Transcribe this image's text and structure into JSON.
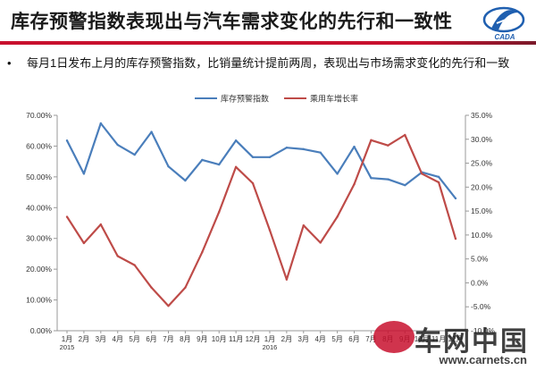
{
  "header": {
    "title": "库存预警指数表现出与汽车需求变化的先行和一致性"
  },
  "bullet": {
    "marker": "•",
    "text": "每月1日发布上月的库存预警指数，比销量统计提前两周，表现出与市场需求变化的先行和一致"
  },
  "logo": {
    "icon": "company-logo-icon",
    "text": "CADA"
  },
  "watermark": {
    "cn": "车网中国",
    "url": "www.carnets.cn"
  },
  "colors": {
    "accent": "#c8102e",
    "series1": "#4a7ebb",
    "series2": "#be4b48"
  },
  "chart_data": {
    "type": "line",
    "title": "",
    "legend_position": "top-center",
    "grid": false,
    "categories": [
      "1月\n2015",
      "2月",
      "3月",
      "4月",
      "5月",
      "6月",
      "7月",
      "8月",
      "9月",
      "10月",
      "11月",
      "12月",
      "1月\n2016",
      "2月",
      "3月",
      "4月",
      "5月",
      "6月",
      "7月",
      "8月",
      "9月",
      "10月",
      "11月",
      "12月"
    ],
    "x_tick_labels": [
      "1月",
      "2月",
      "3月",
      "4月",
      "5月",
      "6月",
      "7月",
      "8月",
      "9月",
      "10月",
      "11月",
      "12月",
      "1月",
      "2月",
      "3月",
      "4月",
      "5月",
      "6月",
      "7月",
      "8月",
      "9月",
      "10月",
      "11月",
      "12月"
    ],
    "x_year_labels": [
      {
        "index": 0,
        "label": "2015"
      },
      {
        "index": 12,
        "label": "2016"
      }
    ],
    "y_left": {
      "range": [
        0,
        70
      ],
      "ticks": [
        "0.00%",
        "10.00%",
        "20.00%",
        "30.00%",
        "40.00%",
        "50.00%",
        "60.00%",
        "70.00%"
      ]
    },
    "y_right": {
      "range": [
        -10,
        35
      ],
      "ticks": [
        "-10.0%",
        "-5.0%",
        "0.0%",
        "5.0%",
        "10.0%",
        "15.0%",
        "20.0%",
        "25.0%",
        "30.0%",
        "35.0%"
      ]
    },
    "series": [
      {
        "name": "库存预警指数",
        "axis": "left",
        "color": "#4a7ebb",
        "values": [
          61.8,
          51.0,
          67.4,
          60.4,
          57.2,
          64.6,
          53.4,
          48.8,
          55.5,
          54.0,
          61.8,
          56.4,
          56.4,
          59.5,
          59.0,
          57.9,
          51.0,
          59.8,
          49.6,
          49.2,
          47.3,
          51.5,
          50.0,
          43.0
        ]
      },
      {
        "name": "乘用车增长率",
        "axis": "right",
        "color": "#be4b48",
        "values": [
          13.8,
          8.3,
          12.2,
          5.6,
          3.7,
          -1.0,
          -4.8,
          -1.0,
          6.4,
          14.8,
          24.2,
          20.8,
          11.0,
          0.7,
          12.0,
          8.4,
          13.8,
          20.6,
          29.8,
          28.7,
          30.9,
          22.8,
          21.0,
          9.2
        ]
      }
    ]
  }
}
